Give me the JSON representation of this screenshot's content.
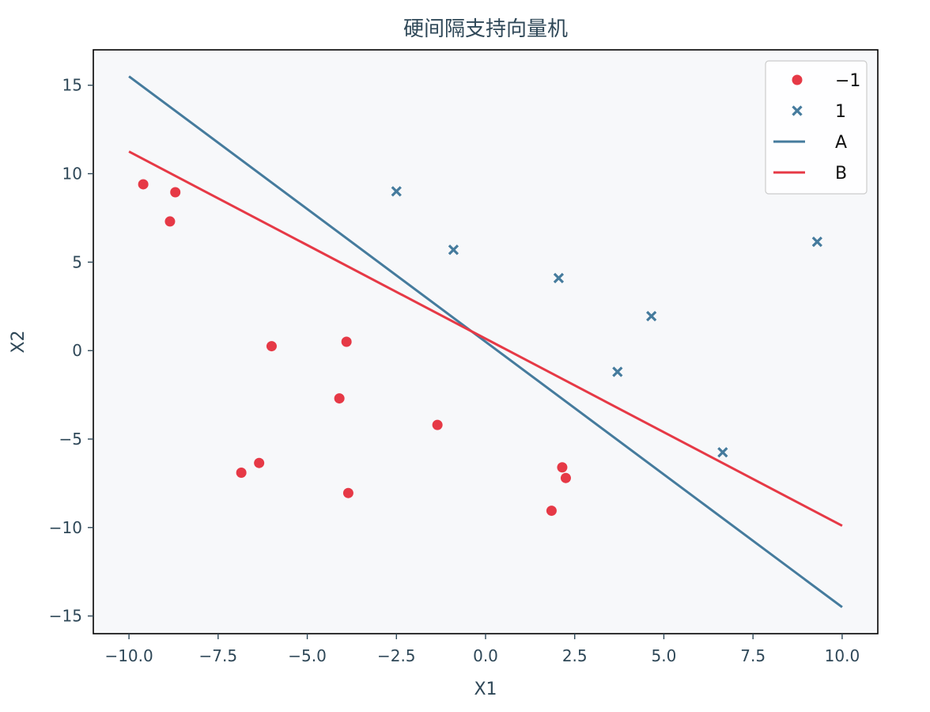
{
  "chart_data": {
    "type": "scatter",
    "title": "硬间隔支持向量机",
    "xlabel": "X1",
    "ylabel": "X2",
    "xlim": [
      -11.0,
      11.0
    ],
    "ylim": [
      -16.0,
      17.0
    ],
    "grid": false,
    "legend_position": "top-right",
    "background_color": "#f7f8fa",
    "xticks": [
      -10.0,
      -7.5,
      -5.0,
      -2.5,
      0.0,
      2.5,
      5.0,
      7.5,
      10.0
    ],
    "xtick_labels": [
      "−10.0",
      "−7.5",
      "−5.0",
      "−2.5",
      "0.0",
      "2.5",
      "5.0",
      "7.5",
      "10.0"
    ],
    "yticks": [
      -15,
      -10,
      -5,
      0,
      5,
      10,
      15
    ],
    "ytick_labels": [
      "−15",
      "−10",
      "−5",
      "0",
      "5",
      "10",
      "15"
    ],
    "series": [
      {
        "name": "−1",
        "kind": "points",
        "marker": "circle",
        "color": "#e63946",
        "points": [
          [
            -9.6,
            9.4
          ],
          [
            -8.7,
            8.95
          ],
          [
            -8.85,
            7.3
          ],
          [
            -6.0,
            0.25
          ],
          [
            -3.9,
            0.5
          ],
          [
            -4.1,
            -2.7
          ],
          [
            -6.85,
            -6.9
          ],
          [
            -6.35,
            -6.35
          ],
          [
            -3.85,
            -8.05
          ],
          [
            -1.35,
            -4.2
          ],
          [
            2.15,
            -6.6
          ],
          [
            2.25,
            -7.2
          ],
          [
            1.85,
            -9.05
          ]
        ]
      },
      {
        "name": "1",
        "kind": "points",
        "marker": "x",
        "color": "#457b9d",
        "points": [
          [
            -2.5,
            9.0
          ],
          [
            -0.9,
            5.7
          ],
          [
            2.05,
            4.1
          ],
          [
            4.65,
            1.95
          ],
          [
            3.7,
            -1.2
          ],
          [
            6.65,
            -5.75
          ],
          [
            9.3,
            6.15
          ]
        ]
      },
      {
        "name": "A",
        "kind": "line",
        "color": "#457b9d",
        "points": [
          [
            -10.0,
            15.5
          ],
          [
            10.0,
            -14.5
          ]
        ]
      },
      {
        "name": "B",
        "kind": "line",
        "color": "#e63946",
        "points": [
          [
            -10.0,
            11.25
          ],
          [
            10.0,
            -9.9
          ]
        ]
      }
    ]
  }
}
